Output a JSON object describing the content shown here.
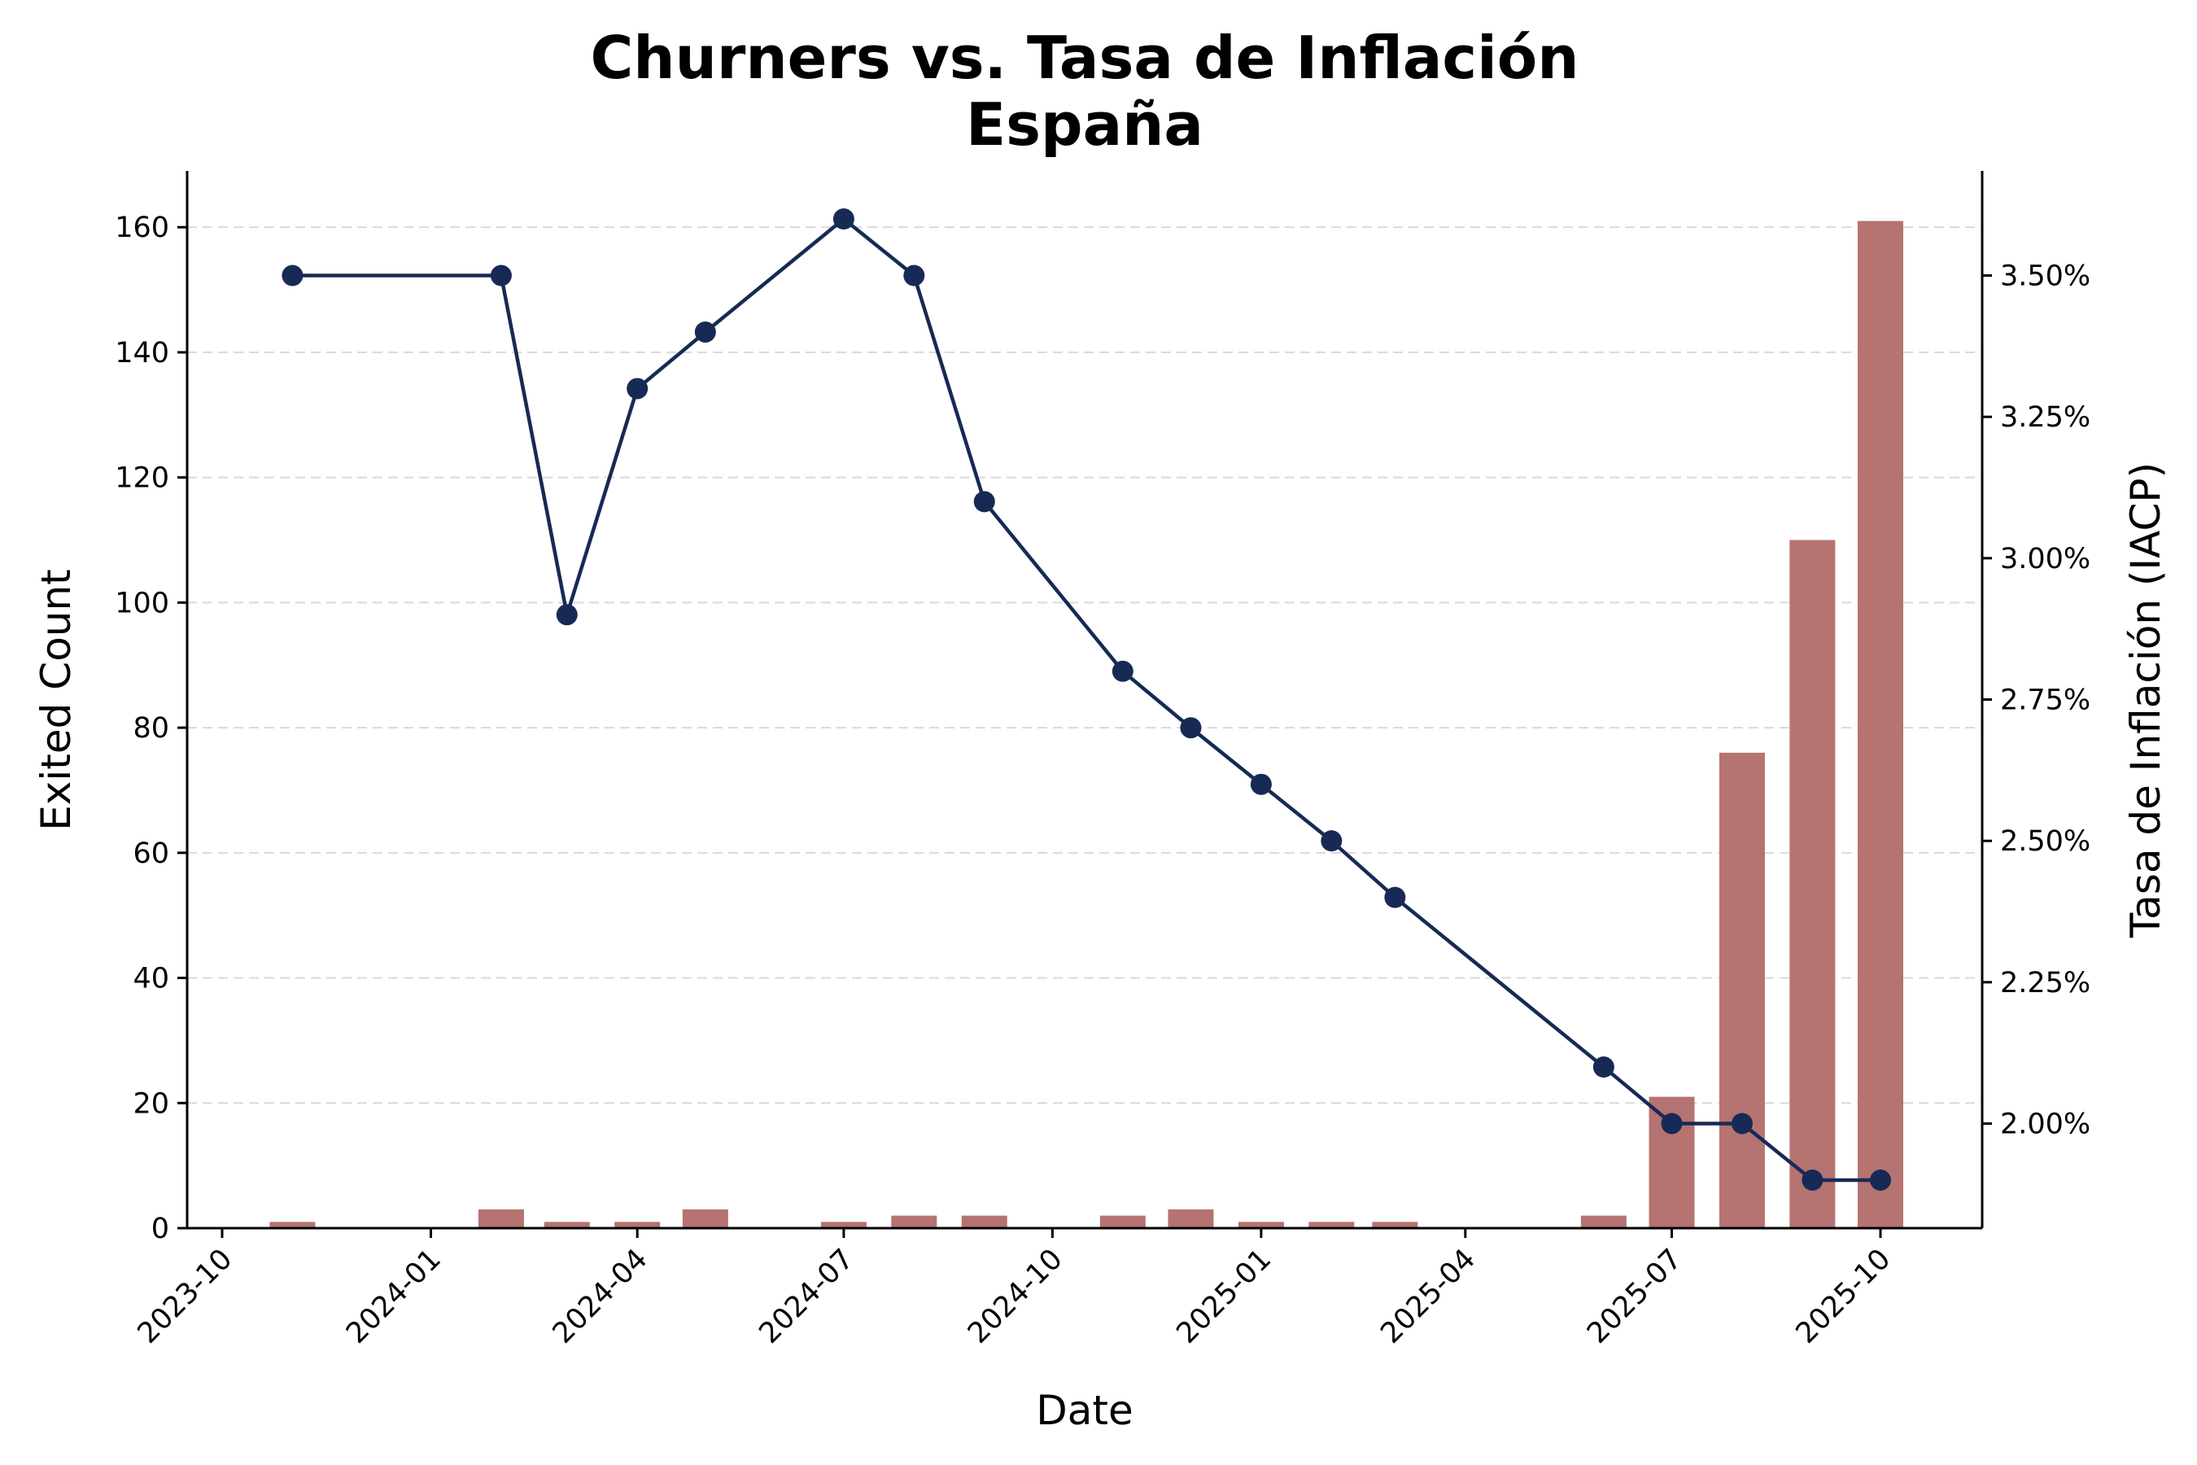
{
  "chart_data": {
    "type": "bar+line",
    "title": "Churners vs. Tasa de Inflación",
    "subtitle": "España",
    "xlabel": "Date",
    "ylabel": "Exited Count",
    "y2label": "Tasa de Inflación (IACP)",
    "x_tick_labels": [
      "2023-10",
      "2024-01",
      "2024-04",
      "2024-07",
      "2024-10",
      "2025-01",
      "2025-04",
      "2025-07",
      "2025-10"
    ],
    "y_ticks": [
      0,
      20,
      40,
      60,
      80,
      100,
      120,
      140,
      160
    ],
    "y2_tick_labels": [
      "2.00%",
      "2.25%",
      "2.50%",
      "2.75%",
      "3.00%",
      "3.25%",
      "3.50%"
    ],
    "ylim": [
      0,
      169
    ],
    "y2lim": [
      1.815,
      3.685
    ],
    "grid": "horizontal dashed",
    "bar_color": "#b57371",
    "line_color": "#172a55",
    "bar_series": {
      "dates": [
        "2023-11",
        "2024-02",
        "2024-03",
        "2024-04",
        "2024-05",
        "2024-07",
        "2024-08",
        "2024-09",
        "2024-11",
        "2024-12",
        "2025-01",
        "2025-02",
        "2025-03",
        "2025-06",
        "2025-07",
        "2025-08",
        "2025-09",
        "2025-10"
      ],
      "values": [
        1,
        3,
        1,
        1,
        3,
        1,
        2,
        2,
        2,
        3,
        1,
        1,
        1,
        2,
        21,
        76,
        110,
        161
      ]
    },
    "line_series": {
      "dates": [
        "2023-11",
        "2024-02",
        "2024-03",
        "2024-04",
        "2024-05",
        "2024-07",
        "2024-08",
        "2024-09",
        "2024-11",
        "2024-12",
        "2025-01",
        "2025-02",
        "2025-03",
        "2025-06",
        "2025-07",
        "2025-08",
        "2025-09",
        "2025-10"
      ],
      "values": [
        3.5,
        3.5,
        2.9,
        3.3,
        3.4,
        3.6,
        3.5,
        3.1,
        2.8,
        2.7,
        2.6,
        2.5,
        2.4,
        2.1,
        2.0,
        2.0,
        1.9,
        1.9
      ]
    }
  }
}
